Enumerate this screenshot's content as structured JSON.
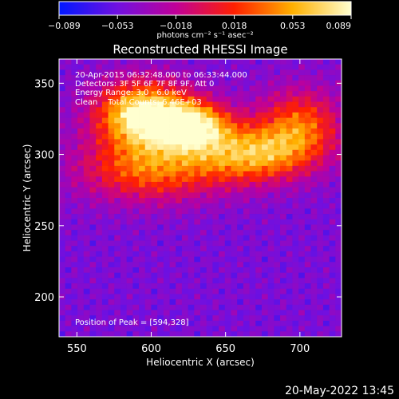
{
  "chart_data": {
    "type": "heatmap",
    "title": "Reconstructed RHESSI Image",
    "xlabel": "Heliocentric X (arcsec)",
    "ylabel": "Heliocentric Y (arcsec)",
    "xlim": [
      538,
      728
    ],
    "ylim": [
      172,
      367
    ],
    "xticks": [
      "550",
      "600",
      "650",
      "700"
    ],
    "yticks": [
      "200",
      "250",
      "300",
      "350"
    ],
    "colorbar": {
      "min": -0.089,
      "max": 0.089,
      "ticks": [
        "−0.089",
        "−0.053",
        "−0.018",
        "0.018",
        "0.053",
        "0.089"
      ],
      "unit": "photons cm⁻² s⁻¹ asec⁻²",
      "colors": [
        "#0018ff",
        "#7010e0",
        "#c00098",
        "#ff2000",
        "#ffb000",
        "#ffffd0"
      ]
    },
    "annotations": {
      "time_range": "20-Apr-2015 06:32:48.000 to 06:33:44.000",
      "detectors": "Detectors: 3F 5F 6F 7F 8F 9F, Att 0",
      "energy_range": "Energy Range: 3.0 - 6.0 keV",
      "clean": "Clean    Total Counts: 6.46E+03",
      "peak": "Position of Peak = [594,328]"
    },
    "peak_position": [
      594,
      328
    ],
    "peak_value": 0.089,
    "image_grid": {
      "nx": 46,
      "ny": 52,
      "x": [
        538,
        728
      ],
      "y": [
        172,
        367
      ],
      "bright_regions": [
        {
          "x": 594,
          "y": 328,
          "sx": 22,
          "sy": 16,
          "amp": 0.089
        },
        {
          "x": 628,
          "y": 320,
          "sx": 18,
          "sy": 12,
          "amp": 0.07
        },
        {
          "x": 668,
          "y": 300,
          "sx": 26,
          "sy": 14,
          "amp": 0.045
        },
        {
          "x": 600,
          "y": 290,
          "sx": 34,
          "sy": 16,
          "amp": 0.035
        },
        {
          "x": 700,
          "y": 320,
          "sx": 20,
          "sy": 18,
          "amp": 0.03
        }
      ],
      "background_level": -0.048
    },
    "timestamp": "20-May-2022 13:45"
  }
}
